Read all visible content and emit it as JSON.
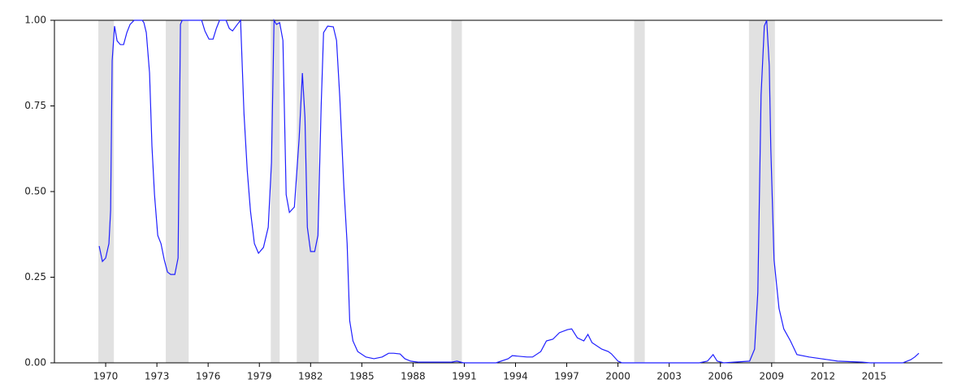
{
  "chart_data": {
    "type": "line",
    "xlim": [
      1967,
      2019
    ],
    "xticks": [
      1970,
      1973,
      1976,
      1979,
      1982,
      1985,
      1988,
      1991,
      1994,
      1997,
      2000,
      2003,
      2006,
      2009,
      2012,
      2015
    ],
    "ylim": [
      0,
      1
    ],
    "yticks": [
      {
        "value": 0,
        "label": "0.00"
      },
      {
        "value": 0.25,
        "label": "0.25"
      },
      {
        "value": 0.5,
        "label": "0.50"
      },
      {
        "value": 0.75,
        "label": "0.75"
      },
      {
        "value": 1,
        "label": "1.00"
      }
    ],
    "shaded_regions": [
      [
        1969.57,
        1970.48
      ],
      [
        1973.52,
        1974.86
      ],
      [
        1979.67,
        1980.19
      ],
      [
        1981.19,
        1982.48
      ],
      [
        1990.24,
        1990.86
      ],
      [
        2000.95,
        2001.57
      ],
      [
        2007.67,
        2009.19
      ]
    ],
    "shade_color": "#e1e1e1",
    "x": [
      1969.62,
      1969.81,
      1970.0,
      1970.19,
      1970.29,
      1970.38,
      1970.52,
      1970.67,
      1970.86,
      1971.05,
      1971.24,
      1971.43,
      1971.67,
      1972.14,
      1972.24,
      1972.38,
      1972.57,
      1972.71,
      1972.86,
      1973.05,
      1973.24,
      1973.43,
      1973.62,
      1973.81,
      1974.05,
      1974.24,
      1974.38,
      1974.48,
      1975.62,
      1975.81,
      1976.05,
      1976.29,
      1976.48,
      1976.67,
      1977.05,
      1977.24,
      1977.43,
      1977.71,
      1977.9,
      1978.1,
      1978.29,
      1978.48,
      1978.71,
      1978.95,
      1979.24,
      1979.52,
      1979.71,
      1979.86,
      1980.0,
      1980.19,
      1980.38,
      1980.57,
      1980.76,
      1981.05,
      1981.33,
      1981.52,
      1981.67,
      1981.81,
      1982.0,
      1982.24,
      1982.43,
      1982.62,
      1982.76,
      1983.0,
      1983.33,
      1983.52,
      1983.71,
      1983.95,
      1984.14,
      1984.29,
      1984.48,
      1984.76,
      1985.24,
      1985.71,
      1986.19,
      1986.57,
      1986.86,
      1987.24,
      1987.52,
      1987.86,
      1988.33,
      1990.24,
      1990.57,
      1990.95,
      1992.86,
      1993.57,
      1993.81,
      1994.67,
      1995.0,
      1995.48,
      1995.81,
      1996.19,
      1996.57,
      1997.05,
      1997.29,
      1997.62,
      1998.0,
      1998.24,
      1998.48,
      1999.05,
      1999.43,
      1999.62,
      2000.0,
      2000.24,
      2004.76,
      2005.24,
      2005.57,
      2005.81,
      2006.19,
      2007.71,
      2008.0,
      2008.19,
      2008.38,
      2008.57,
      2008.71,
      2008.86,
      2008.95,
      2009.14,
      2009.43,
      2009.71,
      2010.1,
      2010.48,
      2011.19,
      2011.9,
      2012.86,
      2014.29,
      2014.76,
      2016.67,
      2017.14,
      2017.38,
      2017.62
    ],
    "series": [
      {
        "color": "#1f1fff",
        "values": [
          0.341,
          0.296,
          0.306,
          0.348,
          0.445,
          0.882,
          0.983,
          0.94,
          0.929,
          0.929,
          0.964,
          0.988,
          1.0,
          1.0,
          0.993,
          0.964,
          0.846,
          0.633,
          0.491,
          0.372,
          0.348,
          0.301,
          0.265,
          0.258,
          0.258,
          0.306,
          0.988,
          1.0,
          1.0,
          0.969,
          0.945,
          0.945,
          0.976,
          1.0,
          1.0,
          0.976,
          0.969,
          0.988,
          1.0,
          0.728,
          0.562,
          0.443,
          0.348,
          0.32,
          0.337,
          0.396,
          0.585,
          1.0,
          0.988,
          0.993,
          0.941,
          0.491,
          0.439,
          0.455,
          0.656,
          0.846,
          0.716,
          0.396,
          0.325,
          0.325,
          0.372,
          0.751,
          0.964,
          0.983,
          0.981,
          0.941,
          0.775,
          0.512,
          0.348,
          0.123,
          0.064,
          0.033,
          0.017,
          0.012,
          0.017,
          0.028,
          0.028,
          0.026,
          0.012,
          0.005,
          0.002,
          0.002,
          0.005,
          0,
          0,
          0.012,
          0.021,
          0.017,
          0.017,
          0.033,
          0.064,
          0.069,
          0.088,
          0.097,
          0.099,
          0.073,
          0.064,
          0.083,
          0.059,
          0.04,
          0.033,
          0.026,
          0.005,
          0,
          0,
          0.005,
          0.024,
          0.005,
          0,
          0.005,
          0.04,
          0.206,
          0.782,
          0.983,
          1.0,
          0.867,
          0.626,
          0.301,
          0.159,
          0.099,
          0.064,
          0.024,
          0.017,
          0.012,
          0.005,
          0.002,
          0,
          0,
          0.009,
          0.017,
          0.028
        ]
      }
    ]
  }
}
